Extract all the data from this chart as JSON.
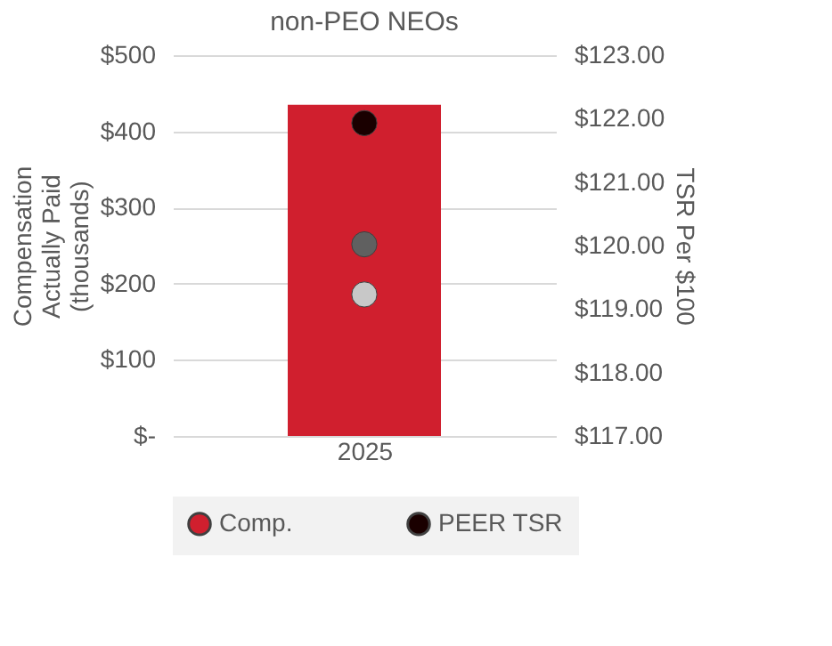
{
  "chart_data": {
    "type": "bar",
    "title": "non-PEO NEOs",
    "categories": [
      "2025"
    ],
    "ylabel": "Compensation Actually Paid (thousands)",
    "y2label": "TSR Per $100",
    "series": [
      {
        "name": "Comp.",
        "type": "bar",
        "color": "#d01f2e",
        "values": [
          435
        ]
      },
      {
        "type": "scatter",
        "axis": "y2",
        "color": "#c8c8c8",
        "values": [
          119.23
        ]
      },
      {
        "type": "scatter",
        "axis": "y2",
        "color": "#606060",
        "values": [
          120.02
        ]
      },
      {
        "name": "PEER TSR",
        "type": "scatter",
        "axis": "y2",
        "color": "#1a0000",
        "values": [
          121.93
        ]
      }
    ],
    "ylim": [
      0,
      500
    ],
    "yticks": [
      {
        "value": 0,
        "label": "$-"
      },
      {
        "value": 100,
        "label": "$100"
      },
      {
        "value": 200,
        "label": "$200"
      },
      {
        "value": 300,
        "label": "$300"
      },
      {
        "value": 400,
        "label": "$400"
      },
      {
        "value": 500,
        "label": "$500"
      }
    ],
    "y2lim": [
      117,
      123
    ],
    "y2ticks": [
      {
        "value": 117,
        "label": "$117.00"
      },
      {
        "value": 118,
        "label": "$118.00"
      },
      {
        "value": 119,
        "label": "$119.00"
      },
      {
        "value": 120,
        "label": "$120.00"
      },
      {
        "value": 121,
        "label": "$121.00"
      },
      {
        "value": 122,
        "label": "$122.00"
      },
      {
        "value": 123,
        "label": "$123.00"
      }
    ],
    "grid": "y",
    "legend": "bottom",
    "marker": "circle"
  }
}
